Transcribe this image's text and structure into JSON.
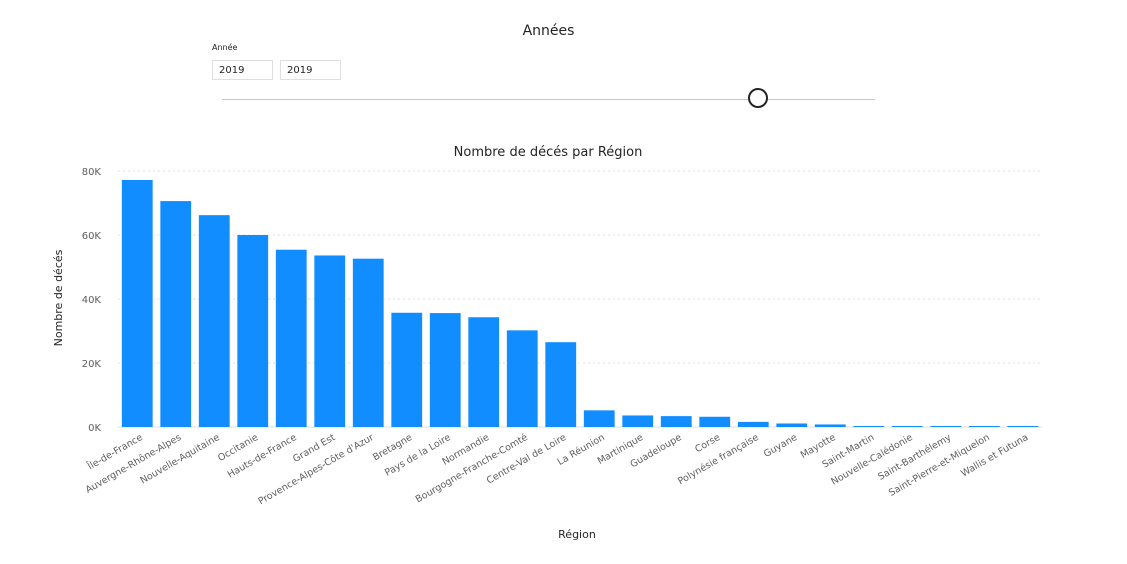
{
  "slicer": {
    "title": "Années",
    "label": "Année",
    "start_value": "2019",
    "end_value": "2019"
  },
  "colors": {
    "bar": "#118dff",
    "grid": "#e1dfdd",
    "text": "#252423",
    "axis_text": "#605e5c"
  },
  "chart_data": {
    "type": "bar",
    "title": "Nombre de décés par Région",
    "xlabel": "Région",
    "ylabel": "Nombre de décés",
    "ylim": [
      0,
      80000
    ],
    "yticks": [
      0,
      20000,
      40000,
      60000,
      80000
    ],
    "ytick_labels": [
      "0K",
      "20K",
      "40K",
      "60K",
      "80K"
    ],
    "grid": true,
    "categories": [
      "Île-de-France",
      "Auvergne-Rhône-Alpes",
      "Nouvelle-Aquitaine",
      "Occitanie",
      "Hauts-de-France",
      "Grand Est",
      "Provence-Alpes-Côte d'Azur",
      "Bretagne",
      "Pays de la Loire",
      "Normandie",
      "Bourgogne-Franche-Comté",
      "Centre-Val de Loire",
      "La Réunion",
      "Martinique",
      "Guadeloupe",
      "Corse",
      "Polynésie française",
      "Guyane",
      "Mayotte",
      "Saint-Martin",
      "Nouvelle-Calédonie",
      "Saint-Barthélemy",
      "Saint-Pierre-et-Miquelon",
      "Wallis et Futuna"
    ],
    "values": [
      77200,
      70600,
      66200,
      60000,
      55400,
      53600,
      52600,
      35700,
      35600,
      34300,
      30200,
      26500,
      5200,
      3600,
      3400,
      3200,
      1600,
      1100,
      800,
      200,
      150,
      100,
      100,
      80
    ]
  }
}
